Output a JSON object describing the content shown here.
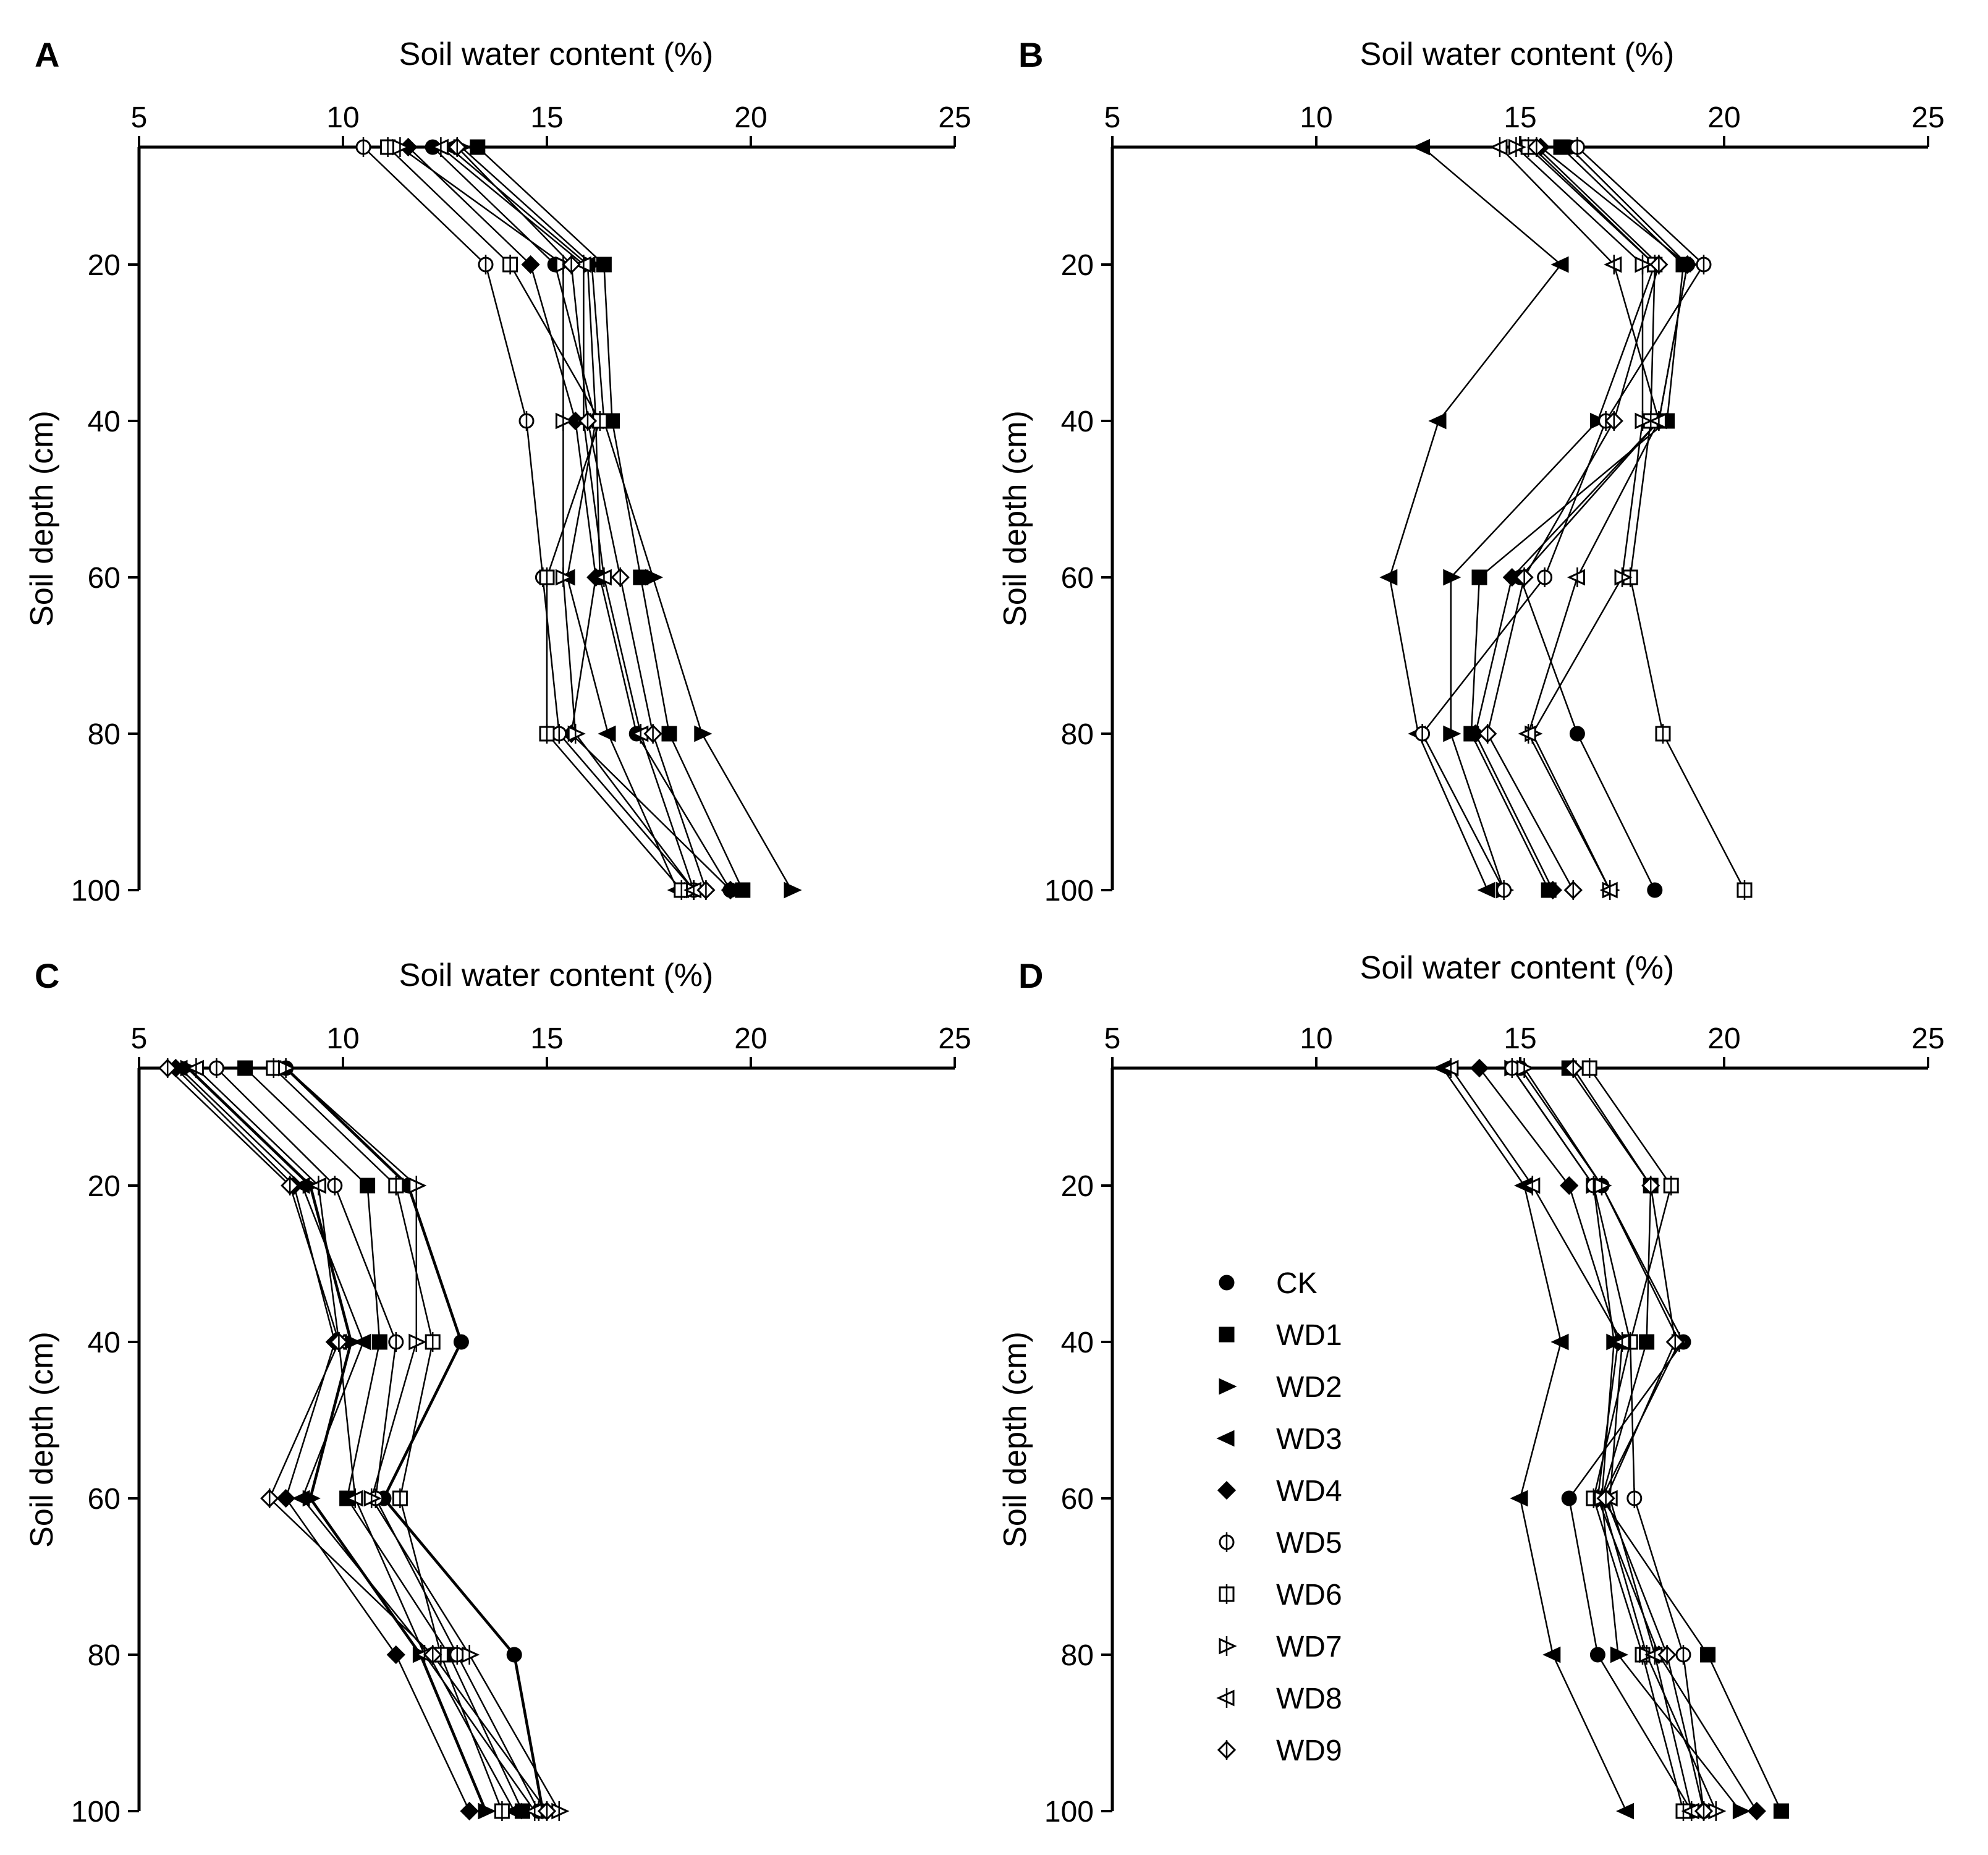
{
  "figure": {
    "shared": {
      "xlabel": "Soil water content (%)",
      "ylabel": "Soil depth (cm)",
      "x_ticks": [
        5,
        10,
        15,
        20,
        25
      ],
      "y_ticks": [
        20,
        40,
        60,
        80,
        100
      ]
    },
    "legend": {
      "panel": "D",
      "placement": "center-left",
      "entries": [
        "CK",
        "WD1",
        "WD2",
        "WD3",
        "WD4",
        "WD5",
        "WD6",
        "WD7",
        "WD8",
        "WD9"
      ]
    }
  },
  "chart_data": [
    {
      "panel": "A",
      "type": "line",
      "xlabel": "Soil water content (%)",
      "ylabel": "Soil depth (cm)",
      "xlim": [
        5,
        25
      ],
      "ylim": [
        5,
        100
      ],
      "x_axis_position": "top",
      "y_inverted": true,
      "depths": [
        5,
        20,
        40,
        60,
        80,
        100
      ],
      "series": [
        {
          "name": "CK",
          "marker": "circle-filled",
          "values": [
            12.2,
            15.2,
            16.2,
            16.3,
            17.2,
            19.5
          ]
        },
        {
          "name": "WD1",
          "marker": "square-filled",
          "values": [
            13.3,
            16.4,
            16.6,
            17.3,
            18.0,
            19.8
          ]
        },
        {
          "name": "WD2",
          "marker": "triangle-right-filled",
          "values": [
            12.9,
            16.1,
            16.4,
            17.6,
            18.8,
            21.0
          ]
        },
        {
          "name": "WD3",
          "marker": "triangle-left-filled",
          "values": [
            12.6,
            16.0,
            16.2,
            15.5,
            16.5,
            18.2
          ]
        },
        {
          "name": "WD4",
          "marker": "diamond-filled",
          "values": [
            11.6,
            14.6,
            15.7,
            16.2,
            15.6,
            19.5
          ]
        },
        {
          "name": "WD5",
          "marker": "circle-open",
          "values": [
            10.5,
            13.5,
            14.5,
            14.9,
            15.3,
            18.6
          ]
        },
        {
          "name": "WD6",
          "marker": "square-open",
          "values": [
            11.1,
            14.1,
            16.3,
            15.0,
            15.0,
            18.3
          ]
        },
        {
          "name": "WD7",
          "marker": "triangle-right-open",
          "values": [
            11.4,
            15.4,
            15.4,
            15.4,
            15.7,
            18.6
          ]
        },
        {
          "name": "WD8",
          "marker": "triangle-left-open",
          "values": [
            12.4,
            15.9,
            15.9,
            16.4,
            17.3,
            18.6
          ]
        },
        {
          "name": "WD9",
          "marker": "diamond-open",
          "values": [
            12.8,
            15.6,
            16.0,
            16.8,
            17.6,
            18.9
          ]
        }
      ]
    },
    {
      "panel": "B",
      "type": "line",
      "xlabel": "Soil water content (%)",
      "ylabel": "Soil depth (cm)",
      "xlim": [
        5,
        25
      ],
      "ylim": [
        5,
        100
      ],
      "x_axis_position": "top",
      "y_inverted": true,
      "depths": [
        5,
        20,
        40,
        60,
        80,
        100
      ],
      "series": [
        {
          "name": "CK",
          "marker": "circle-filled",
          "values": [
            16.2,
            19.1,
            18.4,
            15.0,
            16.4,
            18.3
          ]
        },
        {
          "name": "WD1",
          "marker": "square-filled",
          "values": [
            16.0,
            19.0,
            18.6,
            14.0,
            13.8,
            15.7
          ]
        },
        {
          "name": "WD2",
          "marker": "triangle-right-filled",
          "values": [
            15.3,
            18.3,
            16.9,
            13.3,
            13.3,
            14.6
          ]
        },
        {
          "name": "WD3",
          "marker": "triangle-left-filled",
          "values": [
            12.6,
            16.0,
            13.0,
            11.8,
            12.5,
            14.2
          ]
        },
        {
          "name": "WD4",
          "marker": "diamond-filled",
          "values": [
            15.5,
            19.1,
            18.4,
            14.8,
            13.9,
            15.8
          ]
        },
        {
          "name": "WD5",
          "marker": "circle-open",
          "values": [
            16.4,
            19.5,
            17.1,
            15.6,
            12.6,
            14.6
          ]
        },
        {
          "name": "WD6",
          "marker": "square-open",
          "values": [
            15.2,
            18.3,
            18.2,
            17.7,
            18.5,
            20.5
          ]
        },
        {
          "name": "WD7",
          "marker": "triangle-right-open",
          "values": [
            14.9,
            18.0,
            18.0,
            17.5,
            15.3,
            17.2
          ]
        },
        {
          "name": "WD8",
          "marker": "triangle-left-open",
          "values": [
            14.5,
            17.3,
            18.4,
            16.4,
            15.2,
            17.2
          ]
        },
        {
          "name": "WD9",
          "marker": "diamond-open",
          "values": [
            15.4,
            18.4,
            17.3,
            15.1,
            14.2,
            16.3
          ]
        }
      ]
    },
    {
      "panel": "C",
      "type": "line",
      "xlabel": "Soil water content (%)",
      "ylabel": "Soil depth (cm)",
      "xlim": [
        5,
        25
      ],
      "ylim": [
        5,
        100
      ],
      "x_axis_position": "top",
      "y_inverted": true,
      "depths": [
        5,
        20,
        40,
        60,
        80,
        100
      ],
      "series": [
        {
          "name": "CK",
          "marker": "circle-filled",
          "values": [
            8.6,
            11.6,
            12.9,
            11.0,
            14.2,
            14.9
          ]
        },
        {
          "name": "WD1",
          "marker": "square-filled",
          "values": [
            7.6,
            10.6,
            10.9,
            10.1,
            12.6,
            14.4
          ]
        },
        {
          "name": "WD2",
          "marker": "triangle-right-filled",
          "values": [
            6.2,
            9.2,
            10.2,
            9.2,
            11.9,
            13.5
          ]
        },
        {
          "name": "WD3",
          "marker": "triangle-left-filled",
          "values": [
            6.0,
            9.0,
            10.5,
            9.0,
            12.1,
            14.2
          ]
        },
        {
          "name": "WD4",
          "marker": "diamond-filled",
          "values": [
            5.9,
            8.8,
            9.8,
            8.6,
            11.3,
            13.1
          ]
        },
        {
          "name": "WD5",
          "marker": "circle-open",
          "values": [
            6.9,
            9.8,
            11.3,
            10.8,
            12.8,
            14.8
          ]
        },
        {
          "name": "WD6",
          "marker": "square-open",
          "values": [
            8.3,
            11.3,
            12.2,
            11.4,
            12.4,
            13.9
          ]
        },
        {
          "name": "WD7",
          "marker": "triangle-right-open",
          "values": [
            8.6,
            11.8,
            11.8,
            10.7,
            13.1,
            15.3
          ]
        },
        {
          "name": "WD8",
          "marker": "triangle-left-open",
          "values": [
            6.4,
            9.4,
            9.9,
            10.3,
            12.0,
            14.7
          ]
        },
        {
          "name": "WD9",
          "marker": "diamond-open",
          "values": [
            5.7,
            8.7,
            9.9,
            8.2,
            12.2,
            15.0
          ]
        }
      ]
    },
    {
      "panel": "D",
      "type": "line",
      "xlabel": "Soil water content (%)",
      "ylabel": "Soil depth (cm)",
      "xlim": [
        5,
        25
      ],
      "ylim": [
        5,
        100
      ],
      "x_axis_position": "top",
      "y_inverted": true,
      "depths": [
        5,
        20,
        40,
        60,
        80,
        100
      ],
      "series": [
        {
          "name": "CK",
          "marker": "circle-filled",
          "values": [
            15.0,
            17.0,
            19.0,
            16.2,
            16.9,
            19.2
          ]
        },
        {
          "name": "WD1",
          "marker": "square-filled",
          "values": [
            16.2,
            18.2,
            18.1,
            17.0,
            19.6,
            21.4
          ]
        },
        {
          "name": "WD2",
          "marker": "triangle-right-filled",
          "values": [
            14.8,
            16.8,
            17.3,
            17.0,
            17.4,
            20.4
          ]
        },
        {
          "name": "WD3",
          "marker": "triangle-left-filled",
          "values": [
            13.1,
            15.1,
            16.0,
            15.0,
            15.8,
            17.6
          ]
        },
        {
          "name": "WD4",
          "marker": "diamond-filled",
          "values": [
            14.0,
            16.2,
            17.4,
            16.9,
            18.4,
            20.8
          ]
        },
        {
          "name": "WD5",
          "marker": "circle-open",
          "values": [
            14.8,
            16.8,
            17.7,
            17.8,
            19.0,
            19.5
          ]
        },
        {
          "name": "WD6",
          "marker": "square-open",
          "values": [
            16.7,
            18.7,
            17.7,
            16.8,
            18.0,
            19.0
          ]
        },
        {
          "name": "WD7",
          "marker": "triangle-right-open",
          "values": [
            15.1,
            17.0,
            18.9,
            17.0,
            18.1,
            19.8
          ]
        },
        {
          "name": "WD8",
          "marker": "triangle-left-open",
          "values": [
            13.3,
            15.3,
            17.5,
            17.2,
            18.3,
            19.2
          ]
        },
        {
          "name": "WD9",
          "marker": "diamond-open",
          "values": [
            16.3,
            18.2,
            18.8,
            17.1,
            18.6,
            19.5
          ]
        }
      ]
    }
  ]
}
